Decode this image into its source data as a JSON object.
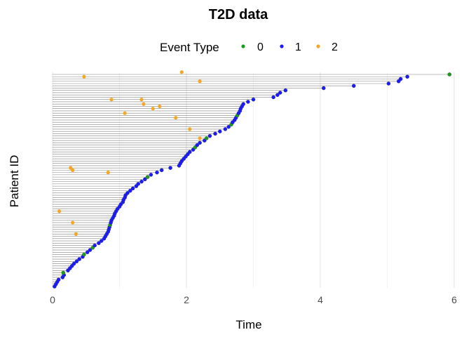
{
  "chart_data": {
    "type": "scatter",
    "title": "T2D data",
    "xlabel": "Time",
    "ylabel": "Patient ID",
    "xlim": [
      0,
      6.1
    ],
    "x_ticks": [
      0,
      2,
      4,
      6
    ],
    "grid": true,
    "legend": {
      "title": "Event Type",
      "placement": "top",
      "entries": [
        {
          "label": "0",
          "color": "#1a9e1a"
        },
        {
          "label": "1",
          "color": "#1a1aff"
        },
        {
          "label": "2",
          "color": "#f5a623"
        }
      ]
    },
    "line_color": "#808080",
    "events": [
      {
        "x": 0.03,
        "type": 1
      },
      {
        "x": 0.05,
        "type": 1
      },
      {
        "x": 0.07,
        "type": 1
      },
      {
        "x": 0.09,
        "type": 1
      },
      {
        "x": 0.15,
        "type": 1
      },
      {
        "x": 0.17,
        "type": 1
      },
      {
        "x": 0.16,
        "type": 0
      },
      {
        "x": 0.23,
        "type": 1
      },
      {
        "x": 0.26,
        "type": 1
      },
      {
        "x": 0.29,
        "type": 1
      },
      {
        "x": 0.32,
        "type": 1
      },
      {
        "x": 0.36,
        "type": 1
      },
      {
        "x": 0.4,
        "type": 1
      },
      {
        "x": 0.45,
        "type": 1
      },
      {
        "x": 0.47,
        "type": 0
      },
      {
        "x": 0.52,
        "type": 1
      },
      {
        "x": 0.56,
        "type": 1
      },
      {
        "x": 0.6,
        "type": 0
      },
      {
        "x": 0.63,
        "type": 1
      },
      {
        "x": 0.69,
        "type": 1
      },
      {
        "x": 0.73,
        "type": 1
      },
      {
        "x": 0.77,
        "type": 1
      },
      {
        "x": 0.79,
        "type": 1
      },
      {
        "x": 0.81,
        "type": 1
      },
      {
        "x": 0.83,
        "type": 1
      },
      {
        "x": 0.84,
        "type": 1
      },
      {
        "x": 0.85,
        "type": 1
      },
      {
        "x": 0.86,
        "type": 0
      },
      {
        "x": 0.87,
        "type": 1
      },
      {
        "x": 0.88,
        "type": 1
      },
      {
        "x": 0.9,
        "type": 1
      },
      {
        "x": 0.92,
        "type": 1
      },
      {
        "x": 0.93,
        "type": 1
      },
      {
        "x": 0.95,
        "type": 1
      },
      {
        "x": 0.97,
        "type": 1
      },
      {
        "x": 1.0,
        "type": 1
      },
      {
        "x": 1.02,
        "type": 1
      },
      {
        "x": 1.05,
        "type": 1
      },
      {
        "x": 1.06,
        "type": 1
      },
      {
        "x": 1.08,
        "type": 1
      },
      {
        "x": 1.09,
        "type": 1
      },
      {
        "x": 1.12,
        "type": 1
      },
      {
        "x": 1.16,
        "type": 1
      },
      {
        "x": 1.2,
        "type": 1
      },
      {
        "x": 1.25,
        "type": 1
      },
      {
        "x": 1.28,
        "type": 1
      },
      {
        "x": 1.33,
        "type": 1
      },
      {
        "x": 1.38,
        "type": 1
      },
      {
        "x": 1.42,
        "type": 0
      },
      {
        "x": 1.47,
        "type": 1
      },
      {
        "x": 1.56,
        "type": 1
      },
      {
        "x": 1.63,
        "type": 1
      },
      {
        "x": 1.76,
        "type": 1
      },
      {
        "x": 1.89,
        "type": 1
      },
      {
        "x": 1.91,
        "type": 1
      },
      {
        "x": 1.93,
        "type": 1
      },
      {
        "x": 1.96,
        "type": 1
      },
      {
        "x": 1.99,
        "type": 1
      },
      {
        "x": 2.02,
        "type": 1
      },
      {
        "x": 2.05,
        "type": 1
      },
      {
        "x": 2.1,
        "type": 1
      },
      {
        "x": 2.13,
        "type": 0
      },
      {
        "x": 2.16,
        "type": 1
      },
      {
        "x": 2.2,
        "type": 1
      },
      {
        "x": 2.27,
        "type": 1
      },
      {
        "x": 2.3,
        "type": 0
      },
      {
        "x": 2.35,
        "type": 1
      },
      {
        "x": 2.43,
        "type": 1
      },
      {
        "x": 2.5,
        "type": 1
      },
      {
        "x": 2.58,
        "type": 1
      },
      {
        "x": 2.63,
        "type": 1
      },
      {
        "x": 2.67,
        "type": 0
      },
      {
        "x": 2.69,
        "type": 1
      },
      {
        "x": 2.72,
        "type": 1
      },
      {
        "x": 2.74,
        "type": 1
      },
      {
        "x": 2.76,
        "type": 0
      },
      {
        "x": 2.78,
        "type": 1
      },
      {
        "x": 2.8,
        "type": 1
      },
      {
        "x": 2.81,
        "type": 1
      },
      {
        "x": 2.83,
        "type": 1
      },
      {
        "x": 2.85,
        "type": 1
      },
      {
        "x": 2.92,
        "type": 1
      },
      {
        "x": 3.0,
        "type": 1
      },
      {
        "x": 3.3,
        "type": 1
      },
      {
        "x": 3.36,
        "type": 1
      },
      {
        "x": 3.4,
        "type": 1
      },
      {
        "x": 3.48,
        "type": 1
      },
      {
        "x": 4.05,
        "type": 1
      },
      {
        "x": 4.5,
        "type": 1
      },
      {
        "x": 5.02,
        "type": 1
      },
      {
        "x": 5.17,
        "type": 1
      },
      {
        "x": 5.2,
        "type": 1
      },
      {
        "x": 5.3,
        "type": 1
      },
      {
        "x": 5.93,
        "type": 0
      }
    ],
    "competing_events": [
      {
        "x": 0.47,
        "patient": 92
      },
      {
        "x": 1.93,
        "patient": 94
      },
      {
        "x": 2.2,
        "patient": 90
      },
      {
        "x": 0.88,
        "patient": 82
      },
      {
        "x": 1.33,
        "patient": 82
      },
      {
        "x": 1.36,
        "patient": 80
      },
      {
        "x": 1.6,
        "patient": 79
      },
      {
        "x": 1.5,
        "patient": 78
      },
      {
        "x": 1.08,
        "patient": 76
      },
      {
        "x": 1.84,
        "patient": 74
      },
      {
        "x": 2.05,
        "patient": 69
      },
      {
        "x": 2.2,
        "patient": 65
      },
      {
        "x": 0.27,
        "patient": 52
      },
      {
        "x": 0.3,
        "patient": 51
      },
      {
        "x": 0.83,
        "patient": 50
      },
      {
        "x": 0.1,
        "patient": 33
      },
      {
        "x": 0.3,
        "patient": 28
      },
      {
        "x": 0.35,
        "patient": 23
      }
    ]
  }
}
